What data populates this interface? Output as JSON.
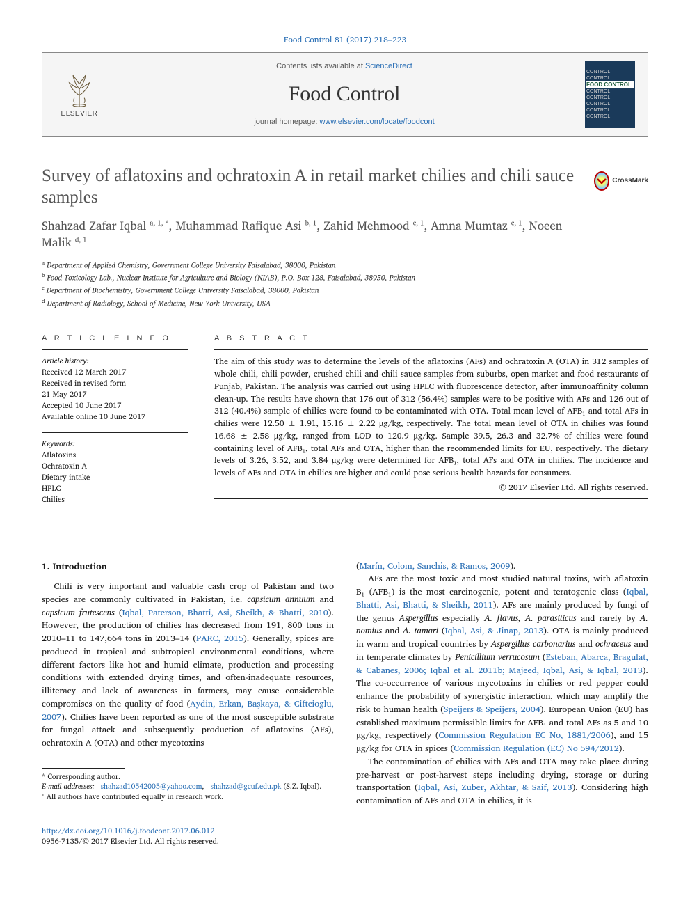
{
  "citation": "Food Control 81 (2017) 218–223",
  "header": {
    "contents_prefix": "Contents lists available at ",
    "contents_link": "ScienceDirect",
    "journal_name": "Food Control",
    "homepage_prefix": "journal homepage: ",
    "homepage_url": "www.elsevier.com/locate/foodcont",
    "publisher_word": "ELSEVIER",
    "cover_label": "CONTROL",
    "cover_food": "FOOD"
  },
  "crossmark_label": "CrossMark",
  "title": "Survey of aflatoxins and ochratoxin A in retail market chilies and chili sauce samples",
  "authors_html": "Shahzad Zafar Iqbal <sup>a, 1, *</sup>, Muhammad Rafique Asi <sup>b, 1</sup>, Zahid Mehmood <sup>c, 1</sup>, Amna Mumtaz <sup>c, 1</sup>, Noeen Malik <sup>d, 1</sup>",
  "affiliations": {
    "a": "Department of Applied Chemistry, Government College University Faisalabad, 38000, Pakistan",
    "b": "Food Toxicology Lab., Nuclear Institute for Agriculture and Biology (NIAB), P.O. Box 128, Faisalabad, 38950, Pakistan",
    "c": "Department of Biochemistry, Government College University Faisalabad, 38000, Pakistan",
    "d": "Department of Radiology, School of Medicine, New York University, USA"
  },
  "article_info": {
    "heading": "A R T I C L E   I N F O",
    "history_label": "Article history:",
    "received": "Received 12 March 2017",
    "revised1": "Received in revised form",
    "revised2": "21 May 2017",
    "accepted": "Accepted 10 June 2017",
    "online": "Available online 10 June 2017",
    "keywords_label": "Keywords:",
    "keywords": [
      "Aflatoxins",
      "Ochratoxin A",
      "Dietary intake",
      "HPLC",
      "Chilies"
    ]
  },
  "abstract": {
    "heading": "A B S T R A C T",
    "text": "The aim of this study was to determine the levels of the aflatoxins (AFs) and ochratoxin A (OTA) in 312 samples of whole chili, chili powder, crushed chili and chili sauce samples from suburbs, open market and food restaurants of Punjab, Pakistan. The analysis was carried out using HPLC with fluorescence detector, after immunoaffinity column clean-up. The results have shown that 176 out of 312 (56.4%) samples were to be positive with AFs and 126 out of 312 (40.4%) sample of chilies were found to be contaminated with OTA. Total mean level of AFB₁ and total AFs in chilies were 12.50 ± 1.91, 15.16 ± 2.22 µg/kg, respectively. The total mean level of OTA in chilies was found 16.68 ± 2.58 µg/kg, ranged from LOD to 120.9 µg/kg. Sample 39.5, 26.3 and 32.7% of chilies were found containing level of AFB₁, total AFs and OTA, higher than the recommended limits for EU, respectively. The dietary levels of 3.26, 3.52, and 3.84 µg/kg were determined for AFB₁, total AFs and OTA in chilies. The incidence and levels of AFs and OTA in chilies are higher and could pose serious health hazards for consumers.",
    "copyright": "© 2017 Elsevier Ltd. All rights reserved."
  },
  "section1": {
    "heading": "1. Introduction",
    "col1_p1_a": "Chili is very important and valuable cash crop of Pakistan and two species are commonly cultivated in Pakistan, i.e. ",
    "col1_p1_i": "capsicum annuum",
    "col1_p1_b": " and ",
    "col1_p1_i2": "capsicum frutescens",
    "col1_p1_c": " (",
    "col1_p1_link1": "Iqbal, Paterson, Bhatti, Asi, Sheikh, & Bhatti, 2010",
    "col1_p1_d": "). However, the production of chilies has decreased from 191, 800 tons in 2010–11 to 147,664 tons in 2013–14 (",
    "col1_p1_link2": "PARC, 2015",
    "col1_p1_e": "). Generally, spices are produced in tropical and subtropical environmental conditions, where different factors like hot and humid climate, production and processing conditions with extended drying times, and often-inadequate resources, illiteracy and lack of awareness in farmers, may cause considerable compromises on the quality of food (",
    "col1_p1_link3": "Aydin, Erkan, Başkaya, & Ciftcioglu, 2007",
    "col1_p1_f": "). Chilies have been reported as one of the most susceptible substrate for fungal attack and subsequently production of aflatoxins (AFs), ochratoxin A (OTA) and other mycotoxins",
    "col2_p0_a": "(",
    "col2_p0_link": "Marín, Colom, Sanchis, & Ramos, 2009",
    "col2_p0_b": ").",
    "col2_p1_a": "AFs are the most toxic and most studied natural toxins, with aflatoxin B₁ (AFB₁) is the most carcinogenic, potent and teratogenic class (",
    "col2_p1_link1": "Iqbal, Bhatti, Asi, Bhatti, & Sheikh, 2011",
    "col2_p1_b": "). AFs are mainly produced by fungi of the genus ",
    "col2_p1_i1": "Aspergillus",
    "col2_p1_c": " especially ",
    "col2_p1_i2": "A. flavus, A. parasiticus",
    "col2_p1_d": " and rarely by ",
    "col2_p1_i3": "A. nomius",
    "col2_p1_e": " and ",
    "col2_p1_i4": "A. tamari",
    "col2_p1_f": " (",
    "col2_p1_link2": "Iqbal, Asi, & Jinap, 2013",
    "col2_p1_g": "). OTA is mainly produced in warm and tropical countries by ",
    "col2_p1_i5": "Aspergillus carbonarius",
    "col2_p1_h": " and ",
    "col2_p1_i6": "ochraceus",
    "col2_p1_i": " and in temperate climates by ",
    "col2_p1_i7": "Penicillium verrucosum",
    "col2_p1_j": " (",
    "col2_p1_link3": "Esteban, Abarca, Bragulat, & Cabañes, 2006; Iqbal et al. 2011b; Majeed, Iqbal, Asi, & Iqbal, 2013",
    "col2_p1_k": "). The co-occurrence of various mycotoxins in chilies or red pepper could enhance the probability of synergistic interaction, which may amplify the risk to human health (",
    "col2_p1_link4": "Speijers & Speijers, 2004",
    "col2_p1_l": "). European Union (EU) has established maximum permissible limits for AFB₁ and total AFs as 5 and 10 µg/kg, respectively (",
    "col2_p1_link5": "Commission Regulation EC No, 1881/2006",
    "col2_p1_m": "), and 15 µg/kg for OTA in spices (",
    "col2_p1_link6": "Commission Regulation (EC) No 594/2012",
    "col2_p1_n": ").",
    "col2_p2_a": "The contamination of chilies with AFs and OTA may take place during pre-harvest or post-harvest steps including drying, storage or during transportation (",
    "col2_p2_link1": "Iqbal, Asi, Zuber, Akhtar, & Saif, 2013",
    "col2_p2_b": "). Considering high contamination of AFs and OTA in chilies, it is"
  },
  "footnotes": {
    "corr": "* Corresponding author.",
    "email_label": "E-mail addresses:",
    "email1": "shahzad10542005@yahoo.com",
    "email_sep": ", ",
    "email2": "shahzad@gcuf.edu.pk",
    "email_who": "(S.Z. Iqbal).",
    "note1": "¹ All authors have contributed equally in research work."
  },
  "bottom": {
    "doi": "http://dx.doi.org/10.1016/j.foodcont.2017.06.012",
    "issn_cp": "0956-7135/© 2017 Elsevier Ltd. All rights reserved."
  },
  "colors": {
    "link": "#2a6fb5",
    "title": "#545454",
    "rule": "#222222"
  }
}
